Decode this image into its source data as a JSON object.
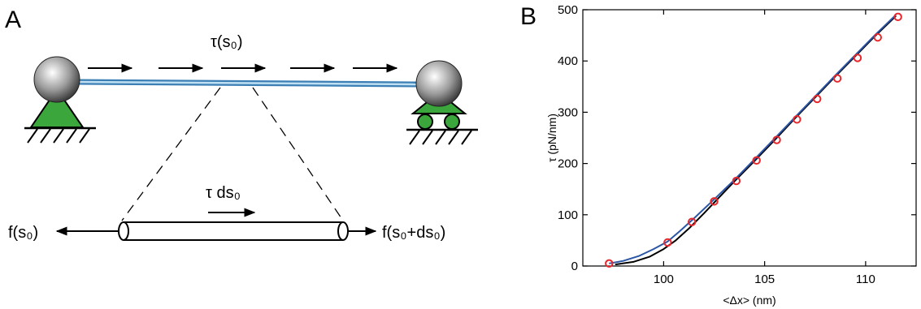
{
  "panel_a": {
    "label": "A",
    "tension_label": "τ(s₀)",
    "inset_force_label": "τ ds₀",
    "left_force_label": "f(s₀)",
    "right_force_label": "f(s₀+ds₀)"
  },
  "panel_b": {
    "label": "B"
  },
  "colors": {
    "rod": "#3b7fb5",
    "support": "#3aa63c",
    "curve_black": "#000000",
    "curve_blue": "#2b56a6",
    "markers": "#e8262b"
  },
  "chart_data": {
    "type": "line",
    "xlabel": "<Δx> (nm)",
    "ylabel": "τ (pN/nm)",
    "xlim": [
      96,
      112.5
    ],
    "ylim": [
      0,
      500
    ],
    "xticks": [
      100,
      105,
      110
    ],
    "yticks": [
      0,
      100,
      200,
      300,
      400,
      500
    ],
    "series": [
      {
        "style": "black-line",
        "x": [
          97.6,
          98.5,
          99.3,
          100.0,
          100.6,
          101.3,
          102.0,
          102.7,
          103.5,
          104.5,
          105.5,
          106.5,
          107.5,
          108.5,
          109.5,
          110.5,
          111.5
        ],
        "y": [
          3,
          8,
          18,
          33,
          50,
          75,
          103,
          132,
          165,
          205,
          246,
          288,
          329,
          370,
          410,
          450,
          488
        ]
      },
      {
        "style": "blue-line",
        "x": [
          97.3,
          98.0,
          98.8,
          99.5,
          100.2,
          100.8,
          101.5,
          102.5,
          103.5,
          104.5,
          105.5,
          106.5,
          107.5,
          108.5,
          109.5,
          110.5,
          111.5
        ],
        "y": [
          5,
          10,
          20,
          33,
          48,
          68,
          93,
          130,
          168,
          208,
          249,
          290,
          331,
          372,
          412,
          452,
          490
        ]
      },
      {
        "style": "red-circles",
        "x": [
          97.3,
          100.2,
          101.4,
          102.5,
          103.6,
          104.6,
          105.6,
          106.6,
          107.6,
          108.6,
          109.6,
          110.6,
          111.6
        ],
        "y": [
          5,
          46,
          86,
          126,
          166,
          206,
          246,
          286,
          326,
          366,
          406,
          446,
          486
        ]
      }
    ]
  }
}
